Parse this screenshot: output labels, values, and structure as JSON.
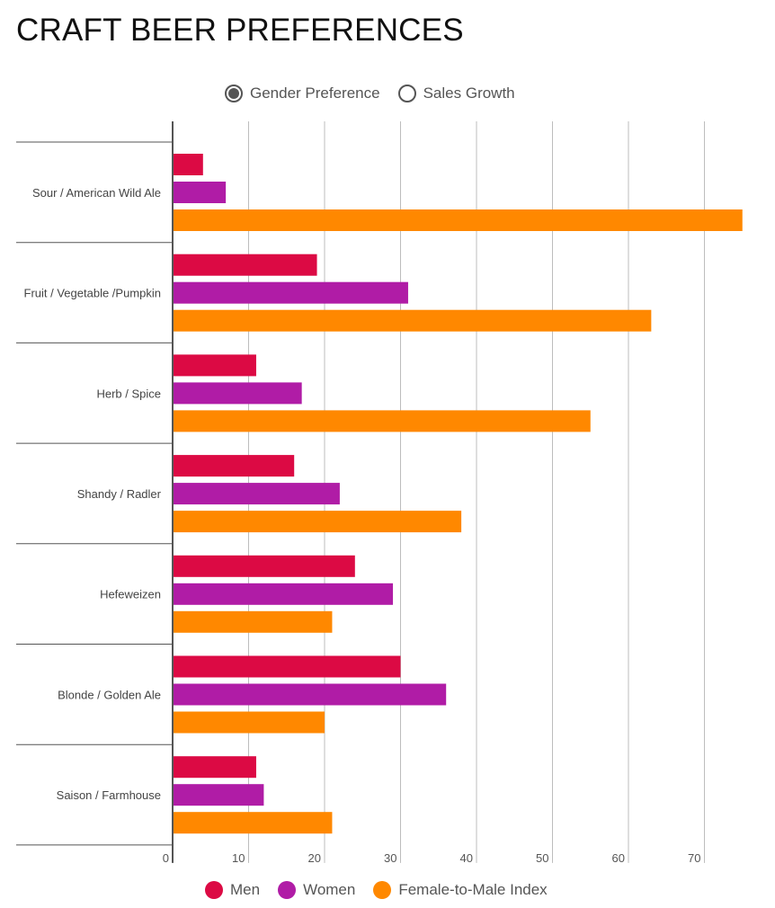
{
  "title": "CRAFT BEER PREFERENCES",
  "toggle": {
    "options": [
      {
        "label": "Gender Preference",
        "selected": true
      },
      {
        "label": "Sales Growth",
        "selected": false
      }
    ]
  },
  "colors": {
    "men": "#dc0a44",
    "women": "#b01ca6",
    "index": "#ff8800",
    "grid": "#bdbdbd",
    "axis": "#555555"
  },
  "chart_data": {
    "type": "bar",
    "orientation": "horizontal",
    "categories": [
      "Sour / American Wild Ale",
      "Fruit / Vegetable /Pumpkin",
      "Herb / Spice",
      "Shandy / Radler",
      "Hefeweizen",
      "Blonde / Golden Ale",
      "Saison / Farmhouse"
    ],
    "series": [
      {
        "name": "Men",
        "values": [
          4,
          19,
          11,
          16,
          24,
          30,
          11
        ]
      },
      {
        "name": "Women",
        "values": [
          7,
          31,
          17,
          22,
          29,
          36,
          12
        ]
      },
      {
        "name": "Female-to-Male Index",
        "values": [
          75,
          63,
          55,
          38,
          21,
          20,
          21
        ]
      }
    ],
    "xlim": [
      0,
      75
    ],
    "xticks": [
      "0",
      "10",
      "20",
      "30",
      "40",
      "50",
      "60",
      "70"
    ],
    "grid": true,
    "legend": "bottom"
  },
  "legend": [
    {
      "label": "Men",
      "color": "#dc0a44"
    },
    {
      "label": "Women",
      "color": "#b01ca6"
    },
    {
      "label": "Female-to-Male Index",
      "color": "#ff8800"
    }
  ]
}
